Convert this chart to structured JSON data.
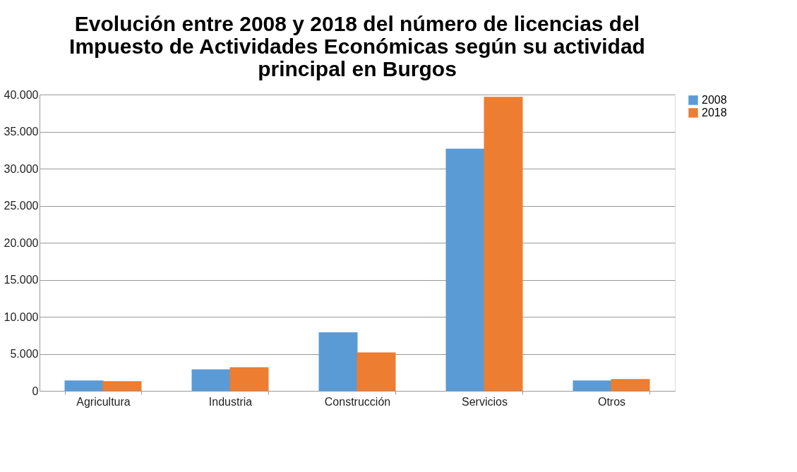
{
  "chart_data": {
    "type": "bar",
    "title": "Evolución entre 2008 y 2018 del número de licencias del Impuesto de Actividades Económicas según su actividad principal en Burgos",
    "categories": [
      "Agricultura",
      "Industria",
      "Construcción",
      "Servicios",
      "Otros"
    ],
    "series": [
      {
        "name": "2008",
        "color": "#5b9bd5",
        "values": [
          1400,
          2900,
          7900,
          32700,
          1400
        ]
      },
      {
        "name": "2018",
        "color": "#ed7d31",
        "values": [
          1300,
          3200,
          5200,
          39700,
          1600
        ]
      }
    ],
    "ylim": [
      0,
      40000
    ],
    "yticks": [
      {
        "value": 0,
        "label": "0"
      },
      {
        "value": 5000,
        "label": "5.000"
      },
      {
        "value": 10000,
        "label": "10.000"
      },
      {
        "value": 15000,
        "label": "15.000"
      },
      {
        "value": 20000,
        "label": "20.000"
      },
      {
        "value": 25000,
        "label": "25.000"
      },
      {
        "value": 30000,
        "label": "30.000"
      },
      {
        "value": 35000,
        "label": "35.000"
      },
      {
        "value": 40000,
        "label": "40.000"
      }
    ],
    "grid": "y",
    "legend": "right"
  }
}
